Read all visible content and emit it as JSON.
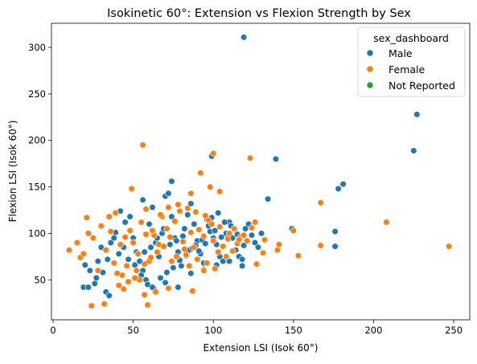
{
  "chart_data": {
    "type": "scatter",
    "title": "Isokinetic 60°: Extension vs Flexion Strength by Sex",
    "xlabel": "Extension LSI (Isok 60°)",
    "ylabel": "Flexion LSI (Isok 60°)",
    "xlim": [
      -1,
      260
    ],
    "ylim": [
      7,
      326
    ],
    "xticks": [
      0,
      50,
      100,
      150,
      200,
      250
    ],
    "yticks": [
      50,
      100,
      150,
      200,
      250,
      300
    ],
    "grid": false,
    "legend": {
      "title": "sex_dashboard",
      "placement": "top-right",
      "entries": [
        {
          "name": "Male",
          "color": "#1f77b4"
        },
        {
          "name": "Female",
          "color": "#ff7f0e"
        },
        {
          "name": "Not Reported",
          "color": "#2ca02c"
        }
      ]
    },
    "series": [
      {
        "name": "Male",
        "color": "#1f77b4",
        "points": [
          [
            119,
            311
          ],
          [
            227,
            228
          ],
          [
            225,
            189
          ],
          [
            139,
            180
          ],
          [
            181,
            153
          ],
          [
            178,
            148
          ],
          [
            99,
            183
          ],
          [
            74,
            156
          ],
          [
            56,
            136
          ],
          [
            134,
            137
          ],
          [
            176,
            102
          ],
          [
            176,
            86
          ],
          [
            149,
            105
          ],
          [
            19,
            42
          ],
          [
            22,
            42
          ],
          [
            26,
            46
          ],
          [
            33,
            37
          ],
          [
            35,
            33
          ],
          [
            20,
            66
          ],
          [
            23,
            60
          ],
          [
            28,
            70
          ],
          [
            30,
            85
          ],
          [
            36,
            90
          ],
          [
            39,
            101
          ],
          [
            42,
            124
          ],
          [
            45,
            112
          ],
          [
            48,
            118
          ],
          [
            50,
            95
          ],
          [
            52,
            80
          ],
          [
            54,
            70
          ],
          [
            56,
            60
          ],
          [
            58,
            50
          ],
          [
            60,
            110
          ],
          [
            62,
            128
          ],
          [
            64,
            90
          ],
          [
            66,
            75
          ],
          [
            68,
            100
          ],
          [
            70,
            140
          ],
          [
            72,
            143
          ],
          [
            74,
            118
          ],
          [
            76,
            95
          ],
          [
            78,
            80
          ],
          [
            80,
            65
          ],
          [
            82,
            105
          ],
          [
            84,
            120
          ],
          [
            86,
            132
          ],
          [
            88,
            110
          ],
          [
            90,
            92
          ],
          [
            92,
            78
          ],
          [
            94,
            68
          ],
          [
            96,
            115
          ],
          [
            98,
            102
          ],
          [
            100,
            95
          ],
          [
            102,
            88
          ],
          [
            104,
            75
          ],
          [
            106,
            70
          ],
          [
            108,
            100
          ],
          [
            110,
            112
          ],
          [
            112,
            95
          ],
          [
            114,
            82
          ],
          [
            116,
            75
          ],
          [
            118,
            65
          ],
          [
            120,
            105
          ],
          [
            122,
            110
          ],
          [
            124,
            98
          ],
          [
            126,
            90
          ],
          [
            128,
            85
          ],
          [
            130,
            100
          ],
          [
            57,
            80
          ],
          [
            61,
            85
          ],
          [
            65,
            95
          ],
          [
            69,
            105
          ],
          [
            73,
            88
          ],
          [
            77,
            92
          ],
          [
            81,
            97
          ],
          [
            85,
            82
          ],
          [
            89,
            87
          ],
          [
            93,
            93
          ],
          [
            97,
            108
          ],
          [
            101,
            103
          ],
          [
            105,
            96
          ],
          [
            47,
            72
          ],
          [
            51,
            66
          ],
          [
            55,
            55
          ],
          [
            59,
            45
          ],
          [
            63,
            40
          ],
          [
            67,
            52
          ],
          [
            71,
            58
          ],
          [
            75,
            63
          ],
          [
            79,
            71
          ],
          [
            83,
            76
          ],
          [
            87,
            84
          ],
          [
            91,
            81
          ],
          [
            95,
            89
          ],
          [
            99,
            117
          ],
          [
            103,
            122
          ],
          [
            107,
            112
          ],
          [
            111,
            108
          ],
          [
            115,
            99
          ],
          [
            119,
            87
          ],
          [
            44,
            85
          ],
          [
            41,
            78
          ],
          [
            38,
            95
          ],
          [
            34,
            72
          ],
          [
            31,
            58
          ],
          [
            27,
            52
          ],
          [
            62,
            42
          ],
          [
            70,
            47
          ],
          [
            78,
            42
          ],
          [
            86,
            57
          ],
          [
            94,
            61
          ],
          [
            102,
            66
          ],
          [
            110,
            70
          ],
          [
            118,
            72
          ]
        ]
      },
      {
        "name": "Female",
        "color": "#ff7f0e",
        "points": [
          [
            56,
            195
          ],
          [
            100,
            186
          ],
          [
            123,
            181
          ],
          [
            92,
            165
          ],
          [
            49,
            148
          ],
          [
            98,
            150
          ],
          [
            104,
            145
          ],
          [
            86,
            143
          ],
          [
            247,
            86
          ],
          [
            208,
            112
          ],
          [
            167,
            133
          ],
          [
            167,
            87
          ],
          [
            153,
            76
          ],
          [
            150,
            103
          ],
          [
            141,
            88
          ],
          [
            140,
            82
          ],
          [
            132,
            93
          ],
          [
            127,
            67
          ],
          [
            10,
            82
          ],
          [
            15,
            90
          ],
          [
            17,
            74
          ],
          [
            21,
            117
          ],
          [
            24,
            22
          ],
          [
            32,
            24
          ],
          [
            57,
            34
          ],
          [
            59,
            23
          ],
          [
            64,
            37
          ],
          [
            72,
            41
          ],
          [
            87,
            38
          ],
          [
            94,
            60
          ],
          [
            43,
            55
          ],
          [
            46,
            65
          ],
          [
            48,
            103
          ],
          [
            50,
            90
          ],
          [
            53,
            78
          ],
          [
            55,
            112
          ],
          [
            58,
            126
          ],
          [
            60,
            70
          ],
          [
            63,
            98
          ],
          [
            66,
            88
          ],
          [
            68,
            118
          ],
          [
            71,
            105
          ],
          [
            73,
            96
          ],
          [
            76,
            113
          ],
          [
            79,
            124
          ],
          [
            81,
            91
          ],
          [
            83,
            77
          ],
          [
            86,
            101
          ],
          [
            88,
            85
          ],
          [
            91,
            104
          ],
          [
            94,
            97
          ],
          [
            97,
            114
          ],
          [
            100,
            92
          ],
          [
            103,
            80
          ],
          [
            106,
            86
          ],
          [
            109,
            94
          ],
          [
            112,
            81
          ],
          [
            115,
            89
          ],
          [
            117,
            96
          ],
          [
            121,
            92
          ],
          [
            124,
            106
          ],
          [
            126,
            112
          ],
          [
            28,
            60
          ],
          [
            30,
            108
          ],
          [
            33,
            82
          ],
          [
            36,
            102
          ],
          [
            38,
            68
          ],
          [
            40,
            57
          ],
          [
            42,
            88
          ],
          [
            45,
            96
          ],
          [
            52,
            60
          ],
          [
            54,
            50
          ],
          [
            57,
            67
          ],
          [
            61,
            74
          ],
          [
            65,
            80
          ],
          [
            69,
            86
          ],
          [
            74,
            70
          ],
          [
            77,
            75
          ],
          [
            82,
            83
          ],
          [
            85,
            65
          ],
          [
            90,
            72
          ],
          [
            96,
            68
          ],
          [
            101,
            62
          ],
          [
            108,
            75
          ],
          [
            113,
            105
          ],
          [
            119,
            98
          ],
          [
            131,
            79
          ],
          [
            25,
            95
          ],
          [
            19,
            78
          ],
          [
            22,
            100
          ],
          [
            35,
            118
          ],
          [
            39,
            122
          ],
          [
            41,
            44
          ],
          [
            44,
            40
          ],
          [
            47,
            48
          ],
          [
            51,
            52
          ],
          [
            58,
            99
          ],
          [
            62,
            103
          ],
          [
            67,
            120
          ],
          [
            72,
            128
          ],
          [
            78,
            131
          ],
          [
            84,
            127
          ],
          [
            89,
            123
          ],
          [
            95,
            119
          ],
          [
            99,
            110
          ],
          [
            104,
            107
          ],
          [
            110,
            100
          ],
          [
            116,
            93
          ]
        ]
      },
      {
        "name": "Not Reported",
        "color": "#2ca02c",
        "points": []
      }
    ]
  }
}
